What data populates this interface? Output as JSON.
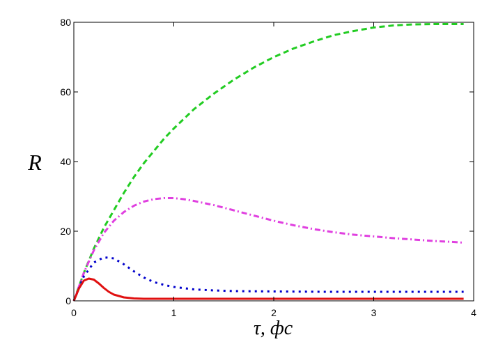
{
  "chart_data": {
    "type": "line",
    "title": "",
    "xlabel": "τ, фс",
    "ylabel": "R",
    "xlim": [
      0,
      4
    ],
    "ylim": [
      0,
      80
    ],
    "xticks": [
      0,
      1,
      2,
      3,
      4
    ],
    "yticks": [
      0,
      20,
      40,
      60,
      80
    ],
    "grid": false,
    "legend": "none",
    "series": [
      {
        "color": "#22cc22",
        "line_style": "dashed",
        "x": [
          0,
          0.1,
          0.2,
          0.3,
          0.4,
          0.5,
          0.6,
          0.7,
          0.8,
          0.9,
          1.0,
          1.2,
          1.4,
          1.6,
          1.8,
          2.0,
          2.2,
          2.4,
          2.6,
          2.8,
          3.0,
          3.2,
          3.4,
          3.6,
          3.8,
          3.9
        ],
        "y": [
          0,
          8,
          15,
          21,
          26,
          31,
          35.5,
          39.5,
          43,
          46.5,
          49.5,
          55,
          59.5,
          63.5,
          67,
          70,
          72.5,
          74.5,
          76.3,
          77.5,
          78.5,
          79.1,
          79.4,
          79.5,
          79.5,
          79.5
        ]
      },
      {
        "color": "#e040e0",
        "line_style": "dashdot",
        "x": [
          0,
          0.1,
          0.2,
          0.3,
          0.4,
          0.5,
          0.6,
          0.7,
          0.8,
          0.9,
          1.0,
          1.1,
          1.2,
          1.4,
          1.6,
          1.8,
          2.0,
          2.2,
          2.4,
          2.6,
          2.8,
          3.0,
          3.2,
          3.4,
          3.6,
          3.8,
          3.9
        ],
        "y": [
          0,
          8,
          14.5,
          19.5,
          23,
          25.5,
          27.3,
          28.5,
          29.2,
          29.5,
          29.5,
          29.2,
          28.7,
          27.5,
          26,
          24.5,
          23,
          21.7,
          20.6,
          19.7,
          19,
          18.5,
          18,
          17.6,
          17.2,
          16.9,
          16.7
        ]
      },
      {
        "color": "#0000cc",
        "line_style": "dotted",
        "x": [
          0,
          0.1,
          0.2,
          0.3,
          0.4,
          0.5,
          0.6,
          0.7,
          0.8,
          0.9,
          1.0,
          1.2,
          1.4,
          1.6,
          2.0,
          2.5,
          3.0,
          3.5,
          3.9
        ],
        "y": [
          0,
          7,
          11,
          12.5,
          12.2,
          10.5,
          8.5,
          6.7,
          5.4,
          4.6,
          4,
          3.3,
          3,
          2.8,
          2.7,
          2.6,
          2.6,
          2.6,
          2.6
        ]
      },
      {
        "color": "#e01010",
        "line_style": "solid",
        "x": [
          0,
          0.05,
          0.1,
          0.15,
          0.2,
          0.25,
          0.3,
          0.35,
          0.4,
          0.5,
          0.6,
          0.7,
          0.8,
          1.0,
          1.5,
          2.0,
          3.0,
          3.9
        ],
        "y": [
          0,
          3.5,
          5.8,
          6.4,
          6.1,
          5,
          3.7,
          2.6,
          1.8,
          1,
          0.7,
          0.6,
          0.6,
          0.6,
          0.6,
          0.6,
          0.6,
          0.6
        ]
      }
    ]
  }
}
